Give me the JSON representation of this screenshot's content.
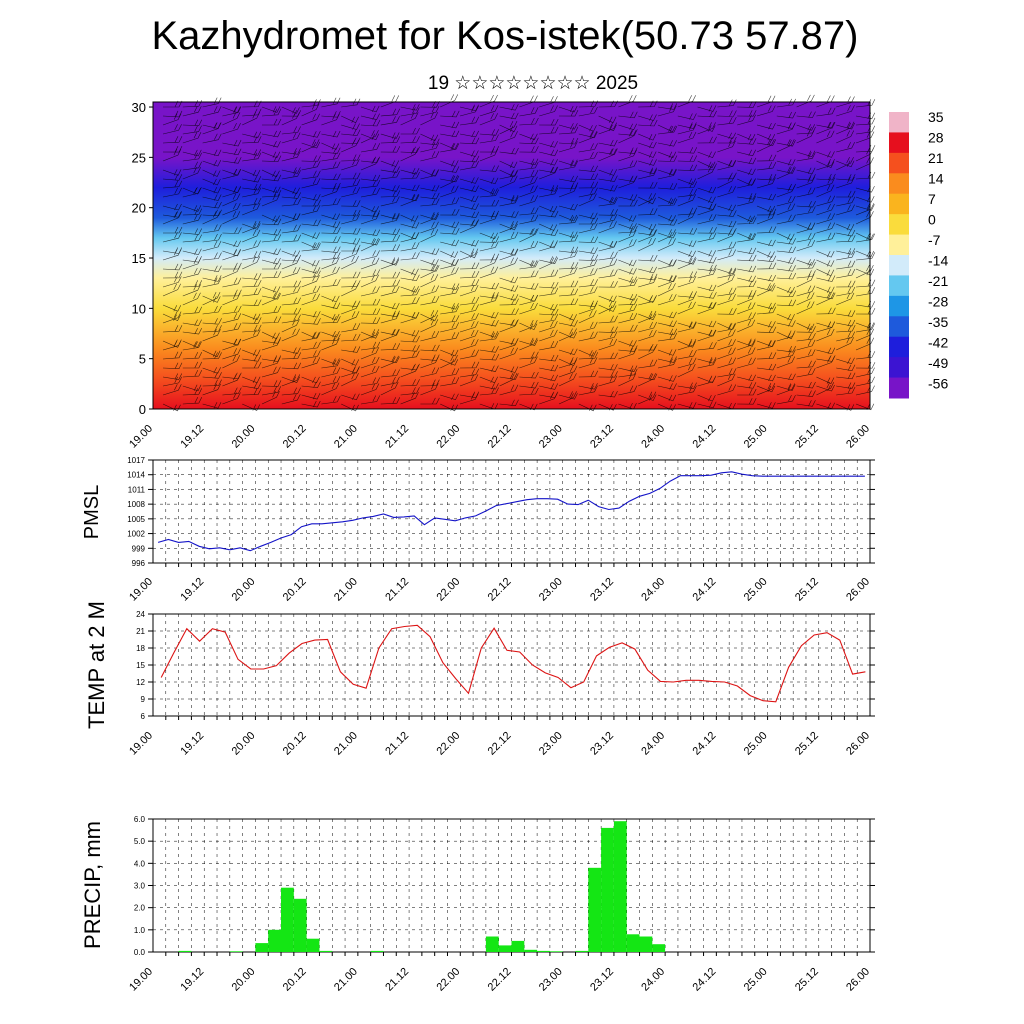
{
  "header": {
    "title": "Kazhydromet for Kos-istek(50.73 57.87)",
    "subtitle": "19 ☆☆☆☆☆☆☆☆ 2025"
  },
  "chart_data": [
    {
      "type": "heatmap",
      "title": "",
      "xlabel": "",
      "ylabel": "",
      "x_ticks": [
        "19.00",
        "19.12",
        "20.00",
        "20.12",
        "21.00",
        "21.12",
        "22.00",
        "22.12",
        "23.00",
        "23.12",
        "24.00",
        "24.12",
        "25.00",
        "25.12",
        "26.00"
      ],
      "y_ticks": [
        0,
        5,
        10,
        15,
        20,
        25,
        30
      ],
      "ylim": [
        0,
        30.5
      ],
      "colorbar": {
        "labels": [
          35,
          28,
          21,
          14,
          7,
          0,
          -7,
          -14,
          -21,
          -28,
          -35,
          -42,
          -49,
          -56
        ],
        "colors": [
          "#f0b4c8",
          "#e60f1e",
          "#f5501e",
          "#fa8c1e",
          "#fab41e",
          "#fadc3c",
          "#fff09a",
          "#d2ebfa",
          "#64c8f0",
          "#1e96e6",
          "#1e5adc",
          "#1e1edc",
          "#3c14d2",
          "#7814c8"
        ]
      },
      "temperature_profile": [
        {
          "level": 0,
          "value": 30
        },
        {
          "level": 3,
          "value": 24
        },
        {
          "level": 6,
          "value": 14
        },
        {
          "level": 10,
          "value": 4
        },
        {
          "level": 13,
          "value": -4
        },
        {
          "level": 15,
          "value": -10
        },
        {
          "level": 17,
          "value": -20
        },
        {
          "level": 19,
          "value": -30
        },
        {
          "level": 22,
          "value": -42
        },
        {
          "level": 25,
          "value": -52
        },
        {
          "level": 30.5,
          "value": -58
        }
      ],
      "overlay": "wind barbs"
    },
    {
      "type": "line",
      "ylabel": "PMSL",
      "ylim": [
        996,
        1017
      ],
      "y_ticks": [
        996,
        999,
        1002,
        1005,
        1008,
        1011,
        1014,
        1017
      ],
      "x_ticks": [
        "19.00",
        "19.12",
        "20.00",
        "20.12",
        "21.00",
        "21.12",
        "22.00",
        "22.12",
        "23.00",
        "23.12",
        "24.00",
        "24.12",
        "25.00",
        "25.12",
        "26.00"
      ],
      "series": [
        {
          "color": "#1414c8",
          "x": [
            0.05,
            0.15,
            0.25,
            0.35,
            0.45,
            0.55,
            0.65,
            0.75,
            0.85,
            0.95,
            1.05,
            1.15,
            1.25,
            1.35,
            1.45,
            1.55,
            1.65,
            1.75,
            1.85,
            1.95,
            2.05,
            2.15,
            2.25,
            2.35,
            2.45,
            2.55,
            2.65,
            2.75,
            2.85,
            2.95,
            3.05,
            3.15,
            3.25,
            3.35,
            3.45,
            3.55,
            3.65,
            3.75,
            3.85,
            3.95,
            4.05,
            4.15,
            4.25,
            4.35,
            4.45,
            4.55,
            4.65,
            4.75,
            4.85,
            4.95,
            5.05,
            5.15,
            5.25,
            5.35,
            5.45,
            5.55,
            5.65,
            5.75,
            5.85,
            5.95,
            6.05,
            6.15,
            6.25,
            6.35,
            6.45,
            6.55,
            6.65,
            6.75,
            6.85,
            6.95
          ],
          "values": [
            1000.2,
            1000.8,
            1000.2,
            1000.4,
            999.4,
            998.9,
            999.1,
            998.7,
            999.1,
            998.5,
            999.4,
            1000.2,
            1001.1,
            1001.8,
            1003.4,
            1004.0,
            1004.0,
            1004.2,
            1004.4,
            1004.7,
            1005.2,
            1005.5,
            1006.0,
            1005.3,
            1005.4,
            1005.6,
            1003.8,
            1005.2,
            1004.9,
            1004.6,
            1005.2,
            1005.6,
            1006.6,
            1007.7,
            1008.1,
            1008.5,
            1008.9,
            1009.1,
            1009.1,
            1009.0,
            1008.0,
            1007.9,
            1008.8,
            1007.5,
            1006.9,
            1007.2,
            1008.6,
            1009.6,
            1010.2,
            1011.2,
            1012.7,
            1013.8,
            1013.8,
            1013.8,
            1013.9,
            1014.4,
            1014.6,
            1014.1,
            1013.8,
            1013.7,
            1013.7,
            1013.7,
            1013.7,
            1013.7,
            1013.7,
            1013.7,
            1013.7,
            1013.7,
            1013.7,
            1013.7
          ]
        }
      ]
    },
    {
      "type": "line",
      "ylabel": "TEMP at 2 M",
      "ylim": [
        6,
        24
      ],
      "y_ticks": [
        6,
        9,
        12,
        15,
        18,
        21,
        24
      ],
      "x_ticks": [
        "19.00",
        "19.12",
        "20.00",
        "20.12",
        "21.00",
        "21.12",
        "22.00",
        "22.12",
        "23.00",
        "23.12",
        "24.00",
        "24.12",
        "25.00",
        "25.12",
        "26.00"
      ],
      "series": [
        {
          "color": "#dc1414",
          "x": [
            0.0,
            0.125,
            0.25,
            0.375,
            0.5,
            0.625,
            0.75,
            0.875,
            1.0,
            1.125,
            1.25,
            1.375,
            1.5,
            1.625,
            1.75,
            1.875,
            2.0,
            2.125,
            2.25,
            2.375,
            2.5,
            2.625,
            2.75,
            2.875,
            3.0,
            3.125,
            3.25,
            3.375,
            3.5,
            3.625,
            3.75,
            3.875,
            4.0,
            4.125,
            4.25,
            4.375,
            4.5,
            4.625,
            4.75,
            4.875,
            5.0,
            5.125,
            5.25,
            5.375,
            5.5,
            5.625,
            5.75,
            5.875,
            6.0,
            6.125,
            6.25,
            6.375,
            6.5,
            6.625,
            6.75,
            6.875
          ],
          "values": [
            12.8,
            17.2,
            21.4,
            19.2,
            21.4,
            20.8,
            16.0,
            14.3,
            14.3,
            14.9,
            17.1,
            18.8,
            19.4,
            19.5,
            13.8,
            11.6,
            10.9,
            18.0,
            21.4,
            21.8,
            22.0,
            20.0,
            15.4,
            12.6,
            10.0,
            18.0,
            21.5,
            17.6,
            17.3,
            15.0,
            13.6,
            12.8,
            11.0,
            12.0,
            16.6,
            18.1,
            18.9,
            17.8,
            14.1,
            12.1,
            12.0,
            12.3,
            12.3,
            12.1,
            12.0,
            11.3,
            9.6,
            8.7,
            8.5,
            14.6,
            18.4,
            20.3,
            20.7,
            19.4,
            13.4,
            13.8
          ]
        }
      ]
    },
    {
      "type": "bar",
      "ylabel": "PRECIP, mm",
      "ylim": [
        0,
        6.0
      ],
      "y_ticks": [
        "0.0",
        "1.0",
        "2.0",
        "3.0",
        "4.0",
        "5.0",
        "6.0"
      ],
      "x_ticks": [
        "19.00",
        "19.12",
        "20.00",
        "20.12",
        "21.00",
        "21.12",
        "22.00",
        "22.12",
        "23.00",
        "23.12",
        "24.00",
        "24.12",
        "25.00",
        "25.12",
        "26.00"
      ],
      "series": [
        {
          "color": "#14e614",
          "x": [
            0.25,
            0.75,
            1.0,
            1.125,
            1.25,
            1.375,
            1.5,
            1.625,
            2.125,
            3.25,
            3.375,
            3.5,
            3.625,
            3.75,
            3.875,
            4.125,
            4.25,
            4.375,
            4.5,
            4.625,
            4.75,
            4.875,
            5.0,
            5.125,
            5.25
          ],
          "values": [
            0.05,
            0.03,
            0.4,
            1.0,
            2.9,
            2.4,
            0.6,
            0.05,
            0.05,
            0.7,
            0.3,
            0.5,
            0.1,
            0.05,
            0.03,
            0.05,
            3.8,
            5.6,
            5.9,
            0.8,
            0.7,
            0.35,
            0.0,
            0.0,
            0.0
          ]
        }
      ]
    }
  ]
}
